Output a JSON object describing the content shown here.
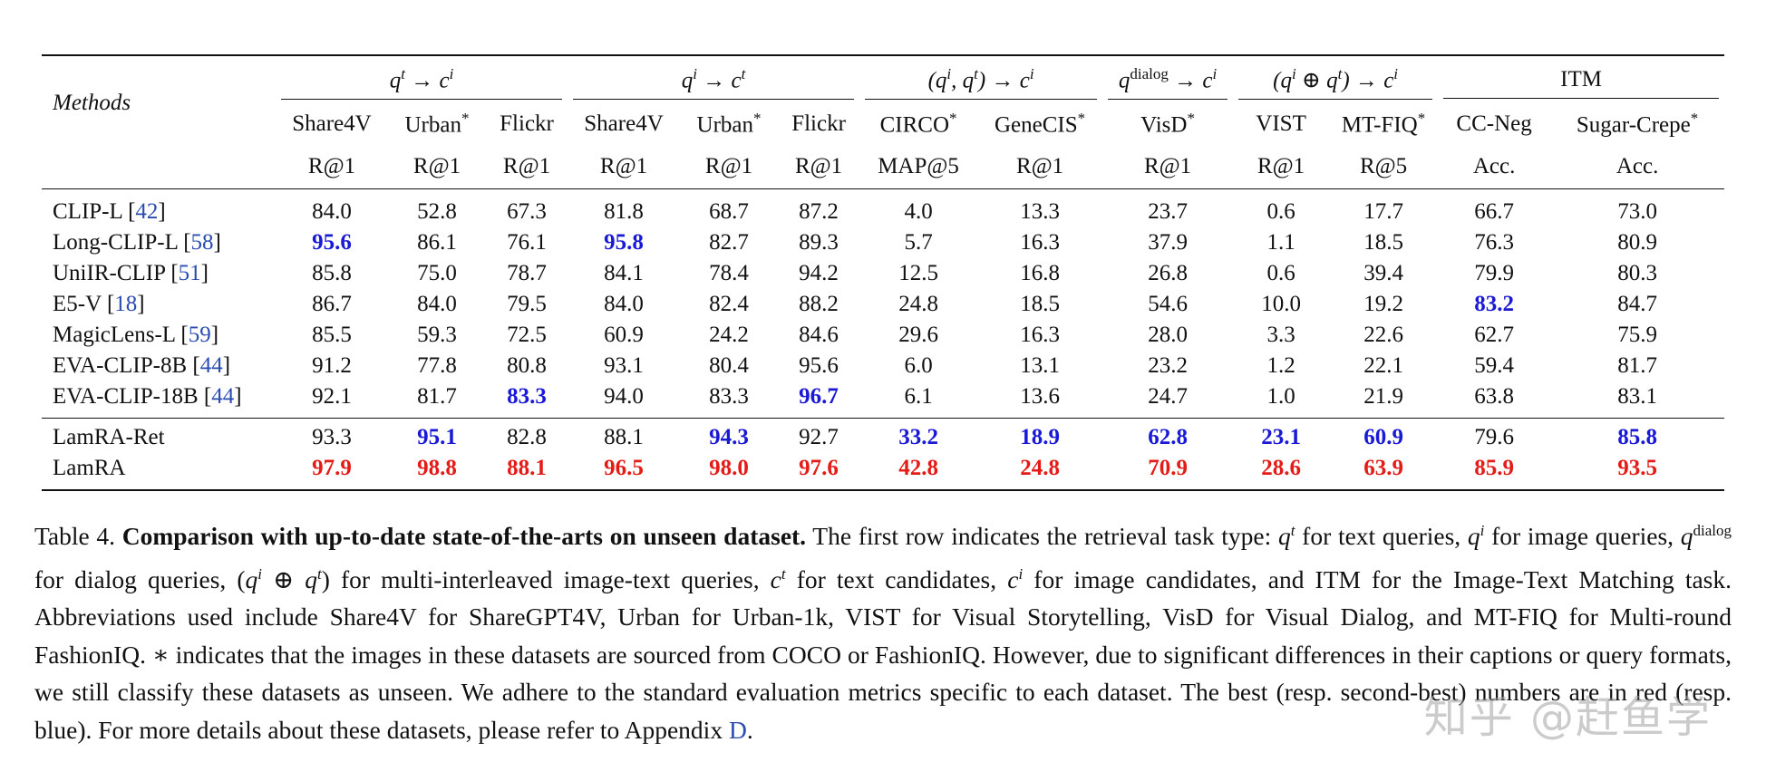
{
  "table": {
    "group_headers": [
      {
        "label": "q^t → c^i",
        "span": 3
      },
      {
        "label": "q^i → c^t",
        "span": 3
      },
      {
        "label": "(q^i, q^t) → c^i",
        "span": 2
      },
      {
        "label": "q^dialog → c^i",
        "span": 1
      },
      {
        "label": "(q^i ⊕ q^t) → c^i",
        "span": 2
      },
      {
        "label": "ITM",
        "span": 2
      }
    ],
    "methods_label": "Methods",
    "datasets": [
      "Share4V",
      "Urban*",
      "Flickr",
      "Share4V",
      "Urban*",
      "Flickr",
      "CIRCO*",
      "GeneCIS*",
      "VisD*",
      "VIST",
      "MT-FIQ*",
      "CC-Neg",
      "Sugar-Crepe*"
    ],
    "metrics": [
      "R@1",
      "R@1",
      "R@1",
      "R@1",
      "R@1",
      "R@1",
      "MAP@5",
      "R@1",
      "R@1",
      "R@1",
      "R@5",
      "Acc.",
      "Acc."
    ],
    "rows": [
      {
        "method": "CLIP-L",
        "cite": "42",
        "values": [
          "84.0",
          "52.8",
          "67.3",
          "81.8",
          "68.7",
          "87.2",
          "4.0",
          "13.3",
          "23.7",
          "0.6",
          "17.7",
          "66.7",
          "73.0"
        ],
        "marks": [
          "",
          "",
          "",
          "",
          "",
          "",
          "",
          "",
          "",
          "",
          "",
          "",
          ""
        ]
      },
      {
        "method": "Long-CLIP-L",
        "cite": "58",
        "values": [
          "95.6",
          "86.1",
          "76.1",
          "95.8",
          "82.7",
          "89.3",
          "5.7",
          "16.3",
          "37.9",
          "1.1",
          "18.5",
          "76.3",
          "80.9"
        ],
        "marks": [
          "second",
          "",
          "",
          "second",
          "",
          "",
          "",
          "",
          "",
          "",
          "",
          "",
          ""
        ]
      },
      {
        "method": "UniIR-CLIP",
        "cite": "51",
        "values": [
          "85.8",
          "75.0",
          "78.7",
          "84.1",
          "78.4",
          "94.2",
          "12.5",
          "16.8",
          "26.8",
          "0.6",
          "39.4",
          "79.9",
          "80.3"
        ],
        "marks": [
          "",
          "",
          "",
          "",
          "",
          "",
          "",
          "",
          "",
          "",
          "",
          "",
          ""
        ]
      },
      {
        "method": "E5-V",
        "cite": "18",
        "values": [
          "86.7",
          "84.0",
          "79.5",
          "84.0",
          "82.4",
          "88.2",
          "24.8",
          "18.5",
          "54.6",
          "10.0",
          "19.2",
          "83.2",
          "84.7"
        ],
        "marks": [
          "",
          "",
          "",
          "",
          "",
          "",
          "",
          "",
          "",
          "",
          "",
          "second",
          ""
        ]
      },
      {
        "method": "MagicLens-L",
        "cite": "59",
        "values": [
          "85.5",
          "59.3",
          "72.5",
          "60.9",
          "24.2",
          "84.6",
          "29.6",
          "16.3",
          "28.0",
          "3.3",
          "22.6",
          "62.7",
          "75.9"
        ],
        "marks": [
          "",
          "",
          "",
          "",
          "",
          "",
          "",
          "",
          "",
          "",
          "",
          "",
          ""
        ]
      },
      {
        "method": "EVA-CLIP-8B",
        "cite": "44",
        "values": [
          "91.2",
          "77.8",
          "80.8",
          "93.1",
          "80.4",
          "95.6",
          "6.0",
          "13.1",
          "23.2",
          "1.2",
          "22.1",
          "59.4",
          "81.7"
        ],
        "marks": [
          "",
          "",
          "",
          "",
          "",
          "",
          "",
          "",
          "",
          "",
          "",
          "",
          ""
        ]
      },
      {
        "method": "EVA-CLIP-18B",
        "cite": "44",
        "values": [
          "92.1",
          "81.7",
          "83.3",
          "94.0",
          "83.3",
          "96.7",
          "6.1",
          "13.6",
          "24.7",
          "1.0",
          "21.9",
          "63.8",
          "83.1"
        ],
        "marks": [
          "",
          "",
          "second",
          "",
          "",
          "second",
          "",
          "",
          "",
          "",
          "",
          "",
          ""
        ]
      }
    ],
    "ours": [
      {
        "method": "LamRA-Ret",
        "cite": "",
        "values": [
          "93.3",
          "95.1",
          "82.8",
          "88.1",
          "94.3",
          "92.7",
          "33.2",
          "18.9",
          "62.8",
          "23.1",
          "60.9",
          "79.6",
          "85.8"
        ],
        "marks": [
          "",
          "second",
          "",
          "",
          "second",
          "",
          "second",
          "second",
          "second",
          "second",
          "second",
          "",
          "second"
        ]
      },
      {
        "method": "LamRA",
        "cite": "",
        "values": [
          "97.9",
          "98.8",
          "88.1",
          "96.5",
          "98.0",
          "97.6",
          "42.8",
          "24.8",
          "70.9",
          "28.6",
          "63.9",
          "85.9",
          "93.5"
        ],
        "marks": [
          "best",
          "best",
          "best",
          "best",
          "best",
          "best",
          "best",
          "best",
          "best",
          "best",
          "best",
          "best",
          "best"
        ]
      }
    ]
  },
  "caption": {
    "label": "Table 4.",
    "bold": "Comparison with up-to-date state-of-the-arts on unseen dataset.",
    "text": "The first row indicates the retrieval task type: q^t for text queries, q^i for image queries, q^dialog for dialog queries, (q^i ⊕ q^t) for multi-interleaved image-text queries, c^t for text candidates, c^i for image candidates, and ITM for the Image-Text Matching task. Abbreviations used include Share4V for ShareGPT4V, Urban for Urban-1k, VIST for Visual Storytelling, VisD for Visual Dialog, and MT-FIQ for Multi-round FashionIQ. ∗ indicates that the images in these datasets are sourced from COCO or FashionIQ. However, due to significant differences in their captions or query formats, we still classify these datasets as unseen. We adhere to the standard evaluation metrics specific to each dataset. The best (resp. second-best) numbers are in red (resp. blue). For more details about these datasets, please refer to Appendix",
    "appendix_ref": "D",
    "end": "."
  },
  "watermark": "知乎 @赶鱼学",
  "colors": {
    "best": "#e41b17",
    "second": "#1a1ad6",
    "cite": "#2a4bb0"
  }
}
